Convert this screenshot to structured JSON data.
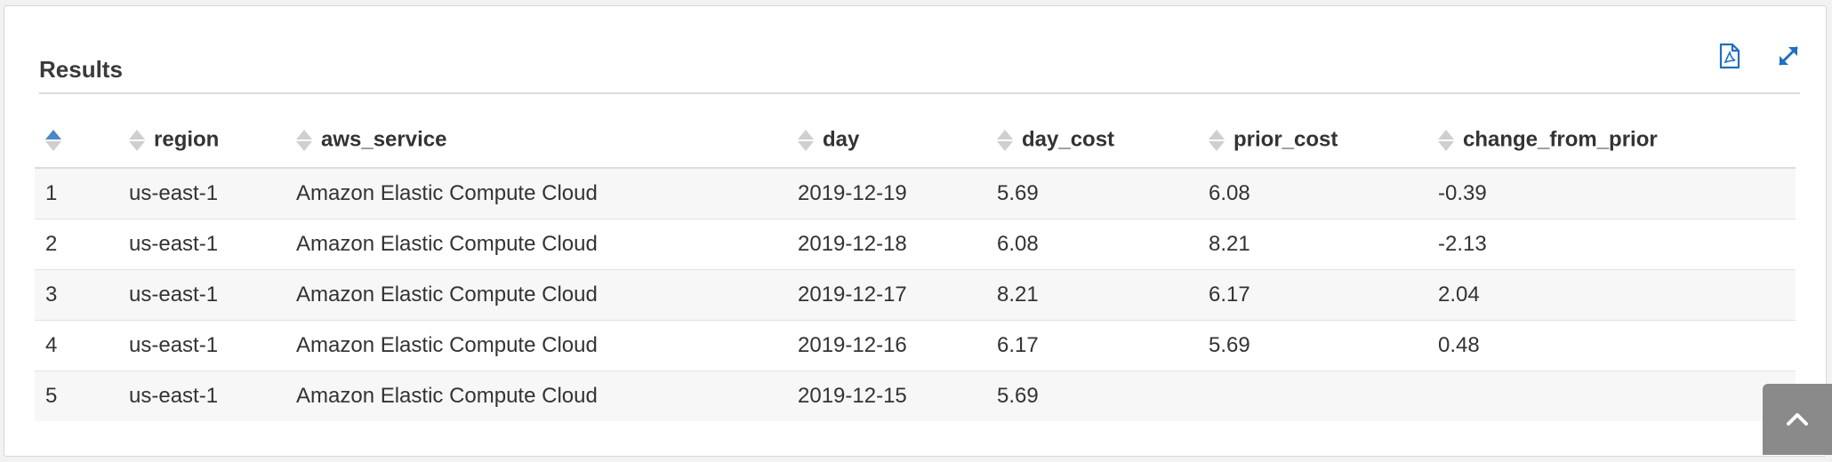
{
  "panel": {
    "title": "Results"
  },
  "toolbar": {
    "export_icon": "export-pdf-icon",
    "expand_icon": "expand-icon"
  },
  "table": {
    "columns": [
      "",
      "region",
      "aws_service",
      "day",
      "day_cost",
      "prior_cost",
      "change_from_prior"
    ],
    "rows": [
      [
        "1",
        "us-east-1",
        "Amazon Elastic Compute Cloud",
        "2019-12-19",
        "5.69",
        "6.08",
        "-0.39"
      ],
      [
        "2",
        "us-east-1",
        "Amazon Elastic Compute Cloud",
        "2019-12-18",
        "6.08",
        "8.21",
        "-2.13"
      ],
      [
        "3",
        "us-east-1",
        "Amazon Elastic Compute Cloud",
        "2019-12-17",
        "8.21",
        "6.17",
        "2.04"
      ],
      [
        "4",
        "us-east-1",
        "Amazon Elastic Compute Cloud",
        "2019-12-16",
        "6.17",
        "5.69",
        "0.48"
      ],
      [
        "5",
        "us-east-1",
        "Amazon Elastic Compute Cloud",
        "2019-12-15",
        "5.69",
        "",
        ""
      ]
    ]
  },
  "scroll_top": {
    "icon": "chevron-up-icon"
  },
  "colors": {
    "accent": "#1f6fbf",
    "sort_active": "#4a89c8"
  }
}
